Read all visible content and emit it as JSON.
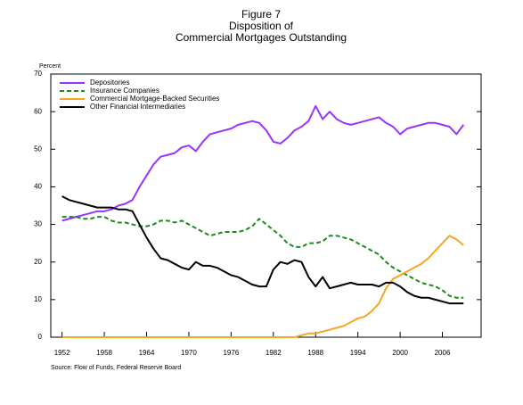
{
  "chart_data": {
    "type": "line",
    "title": [
      "Figure 7",
      "Disposition of",
      "Commercial Mortgages Outstanding"
    ],
    "y_label": "Percent",
    "source": "Source: Flow of Funds, Federal Reserve Board",
    "x": [
      1952,
      1953,
      1954,
      1955,
      1956,
      1957,
      1958,
      1959,
      1960,
      1961,
      1962,
      1963,
      1964,
      1965,
      1966,
      1967,
      1968,
      1969,
      1970,
      1971,
      1972,
      1973,
      1974,
      1975,
      1976,
      1977,
      1978,
      1979,
      1980,
      1981,
      1982,
      1983,
      1984,
      1985,
      1986,
      1987,
      1988,
      1989,
      1990,
      1991,
      1992,
      1993,
      1994,
      1995,
      1996,
      1997,
      1998,
      1999,
      2000,
      2001,
      2002,
      2003,
      2004,
      2005,
      2006,
      2007,
      2008,
      2009
    ],
    "xlim": [
      1950.4,
      2011.5
    ],
    "xticks": [
      1952,
      1958,
      1964,
      1970,
      1976,
      1982,
      1988,
      1994,
      2000,
      2006
    ],
    "ylim": [
      0,
      70
    ],
    "yticks": [
      0,
      10,
      20,
      30,
      40,
      50,
      60,
      70
    ],
    "legend": "upper left",
    "series": [
      {
        "name": "Depositories",
        "color": "#9933ff",
        "dash": false,
        "values": [
          31,
          31.5,
          32,
          32.5,
          33,
          33.5,
          33.5,
          34,
          35,
          35.5,
          36.5,
          40,
          43,
          46,
          48,
          48.5,
          49,
          50.5,
          51,
          49.5,
          52,
          54,
          54.5,
          55,
          55.5,
          56.5,
          57,
          57.5,
          57,
          55,
          52,
          51.5,
          53,
          55,
          56,
          57.5,
          61.5,
          58,
          60,
          58,
          57,
          56.5,
          57,
          57.5,
          58,
          58.5,
          57,
          56,
          54,
          55.5,
          56,
          56.5,
          57,
          57,
          56.5,
          56,
          54,
          56.5
        ]
      },
      {
        "name": "Insurance Companies",
        "color": "#1a8c1a",
        "dash": true,
        "values": [
          32,
          32,
          32,
          31.5,
          31.5,
          32,
          32,
          31,
          30.5,
          30.5,
          30,
          29.5,
          29.5,
          30,
          31,
          31,
          30.5,
          31,
          30,
          29,
          28,
          27,
          27.5,
          28,
          28,
          28,
          28.5,
          29.5,
          31.5,
          30,
          28.5,
          27,
          25,
          24,
          24,
          25,
          25,
          25.5,
          27,
          27,
          26.5,
          26,
          25,
          24,
          23,
          22,
          20,
          18.5,
          17.5,
          16.5,
          15.5,
          14.5,
          14,
          13.5,
          12.5,
          11,
          10.5,
          10.5
        ]
      },
      {
        "name": "Commercial Mortgage-Backed Securities",
        "color": "#f5a623",
        "dash": false,
        "values": [
          0,
          0,
          0,
          0,
          0,
          0,
          0,
          0,
          0,
          0,
          0,
          0,
          0,
          0,
          0,
          0,
          0,
          0,
          0,
          0,
          0,
          0,
          0,
          0,
          0,
          0,
          0,
          0,
          0,
          0,
          0,
          0,
          0,
          0,
          0.5,
          1,
          1,
          1.5,
          2,
          2.5,
          3,
          4,
          5,
          5.5,
          7,
          9,
          13,
          15.5,
          16.5,
          17.5,
          18.5,
          19.5,
          21,
          23,
          25,
          27,
          26,
          24.5
        ]
      },
      {
        "name": "Other Financial Intermediaries",
        "color": "#000000",
        "dash": false,
        "values": [
          37.5,
          36.5,
          36,
          35.5,
          35,
          34.5,
          34.5,
          34.5,
          34,
          34,
          33.5,
          30,
          26.5,
          23.5,
          21,
          20.5,
          19.5,
          18.5,
          18,
          20,
          19,
          19,
          18.5,
          17.5,
          16.5,
          16,
          15,
          14,
          13.5,
          13.5,
          18,
          20,
          19.5,
          20.5,
          20,
          16,
          13.5,
          16,
          13,
          13.5,
          14,
          14.5,
          14,
          14,
          14,
          13.5,
          14.5,
          14.5,
          13.5,
          12,
          11,
          10.5,
          10.5,
          10,
          9.5,
          9,
          9,
          9
        ]
      }
    ]
  }
}
